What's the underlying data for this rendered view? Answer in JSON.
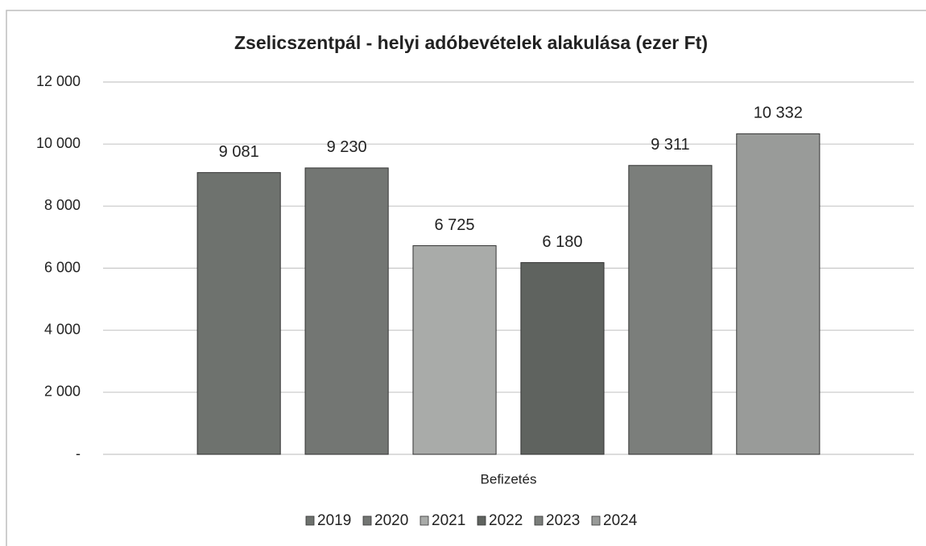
{
  "chart_data": {
    "type": "bar",
    "title": "Zselicszentpál - helyi adóbevételek alakulása (ezer Ft)",
    "categories": [
      "Befizetés"
    ],
    "series": [
      {
        "name": "2019",
        "color": "#6e726e",
        "values": [
          9081
        ],
        "value_labels": [
          "9 081"
        ]
      },
      {
        "name": "2020",
        "color": "#737673",
        "values": [
          9230
        ],
        "value_labels": [
          "9 230"
        ]
      },
      {
        "name": "2021",
        "color": "#a9aba9",
        "values": [
          6725
        ],
        "value_labels": [
          "6 725"
        ]
      },
      {
        "name": "2022",
        "color": "#5f635f",
        "values": [
          6180
        ],
        "value_labels": [
          "6 180"
        ]
      },
      {
        "name": "2023",
        "color": "#7b7e7b",
        "values": [
          9311
        ],
        "value_labels": [
          "9 311"
        ]
      },
      {
        "name": "2024",
        "color": "#999b99",
        "values": [
          10332
        ],
        "value_labels": [
          "10 332"
        ]
      }
    ],
    "ylim": [
      0,
      12000
    ],
    "yticks": [
      {
        "value": 0,
        "label": "-"
      },
      {
        "value": 2000,
        "label": "2 000"
      },
      {
        "value": 4000,
        "label": "4 000"
      },
      {
        "value": 6000,
        "label": "6 000"
      },
      {
        "value": 8000,
        "label": "8 000"
      },
      {
        "value": 10000,
        "label": "10 000"
      },
      {
        "value": 12000,
        "label": "12 000"
      }
    ],
    "grid": true,
    "legend": "bottom"
  }
}
